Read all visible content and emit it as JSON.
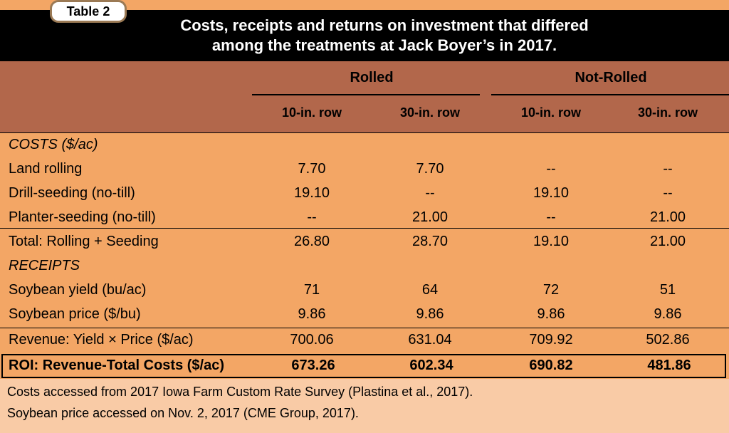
{
  "table_tag": "Table 2",
  "title_line1": "Costs, receipts and returns on investment that differed",
  "title_line2": "among the treatments at Jack Boyer’s in 2017.",
  "groups": [
    "Rolled",
    "Not-Rolled"
  ],
  "columns": [
    "10-in. row",
    "30-in. row",
    "10-in. row",
    "30-in. row"
  ],
  "rows": [
    {
      "label": "COSTS ($/ac)",
      "italic": true,
      "values": [
        "",
        "",
        "",
        ""
      ]
    },
    {
      "label": "Land rolling",
      "values": [
        "7.70",
        "7.70",
        "--",
        "--"
      ]
    },
    {
      "label": "Drill-seeding (no-till)",
      "values": [
        "19.10",
        "--",
        "19.10",
        "--"
      ]
    },
    {
      "label": "Planter-seeding (no-till)",
      "values": [
        "--",
        "21.00",
        "--",
        "21.00"
      ]
    },
    {
      "label": "Total: Rolling + Seeding",
      "values": [
        "26.80",
        "28.70",
        "19.10",
        "21.00"
      ]
    },
    {
      "label": "RECEIPTS",
      "italic": true,
      "values": [
        "",
        "",
        "",
        ""
      ]
    },
    {
      "label": "Soybean yield (bu/ac)",
      "values": [
        "71",
        "64",
        "72",
        "51"
      ]
    },
    {
      "label": "Soybean price ($/bu)",
      "values": [
        "9.86",
        "9.86",
        "9.86",
        "9.86"
      ]
    },
    {
      "label": "Revenue: Yield × Price ($/ac)",
      "values": [
        "700.06",
        "631.04",
        "709.92",
        "502.86"
      ]
    }
  ],
  "roi": {
    "label": "ROI: Revenue-Total Costs ($/ac)",
    "values": [
      "673.26",
      "602.34",
      "690.82",
      "481.86"
    ]
  },
  "notes": [
    "Costs accessed from 2017 Iowa Farm Custom Rate Survey (Plastina et al., 2017).",
    "Soybean price accessed on Nov. 2, 2017 (CME Group, 2017)."
  ],
  "colors": {
    "title_bg": "#000000",
    "header_bg": "#b2674b",
    "body_bg": "#f3a665",
    "footer_bg": "#f9cba6"
  }
}
